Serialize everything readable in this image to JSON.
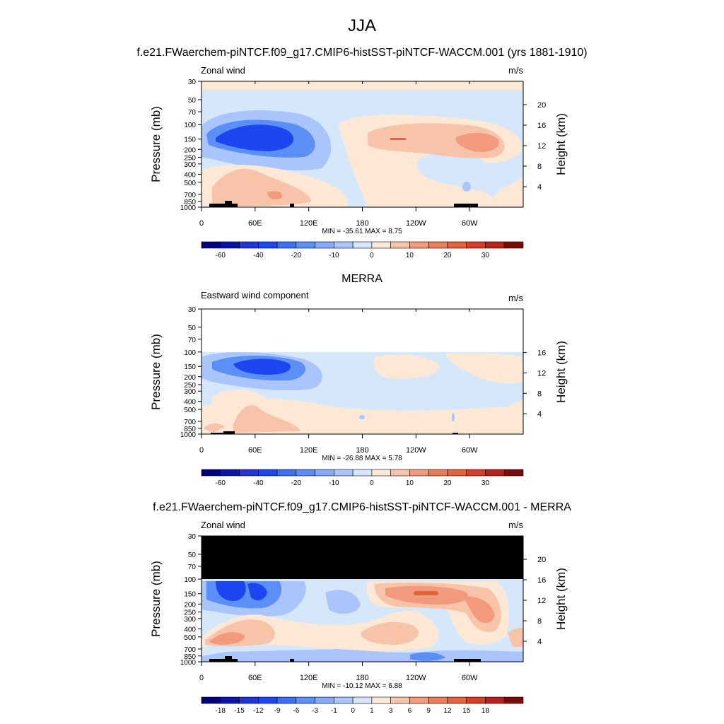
{
  "figure": {
    "title": "JJA"
  },
  "colors": {
    "ocean_dark": "#00007f",
    "blue_strong": "#1e46f0",
    "blue_mid": "#5b8ff6",
    "blue_light": "#a9c5fb",
    "blue_pale": "#d5e7fb",
    "orange_pale": "#fde7d5",
    "orange_light": "#f7c4aa",
    "orange_mid": "#f29b7c",
    "orange_strong": "#e4633f",
    "red_dark": "#7b0a0a",
    "missing": "#000000"
  },
  "chart_data": [
    {
      "type": "heatmap",
      "heading": "f.e21.FWaerchem-piNTCF.f09_g17.CMIP6-histSST-piNTCF-WACCM.001 (yrs 1881-1910)",
      "left_label": "Zonal wind",
      "right_label": "m/s",
      "ylabel": "Pressure (mb)",
      "y2label": "Height (km)",
      "x_ticks": [
        "0",
        "60E",
        "120E",
        "180",
        "120W",
        "60W"
      ],
      "y_ticks": [
        "30",
        "50",
        "70",
        "100",
        "150",
        "200",
        "250",
        "300",
        "400",
        "500",
        "700",
        "850",
        "1000"
      ],
      "y2_ticks": [
        "20",
        "16",
        "12",
        "8",
        "4"
      ],
      "stats": "MIN = -35.61  MAX =   8.75",
      "colorbar_labels": [
        "-60",
        "-40",
        "-20",
        "-10",
        "0",
        "10",
        "20",
        "30"
      ],
      "ylim": [
        1000,
        30
      ],
      "min": -35.61,
      "max": 8.75
    },
    {
      "type": "heatmap",
      "heading": "MERRA",
      "left_label": "Eastward wind component",
      "right_label": "m/s",
      "ylabel": "Pressure (mb)",
      "y2label": "Height (km)",
      "x_ticks": [
        "0",
        "60E",
        "120E",
        "180",
        "120W",
        "60W"
      ],
      "y_ticks": [
        "30",
        "50",
        "70",
        "100",
        "150",
        "200",
        "250",
        "300",
        "400",
        "500",
        "700",
        "850",
        "1000"
      ],
      "y2_ticks": [
        "16",
        "12",
        "8",
        "4"
      ],
      "stats": "MIN = -26.88  MAX =   5.78",
      "colorbar_labels": [
        "-60",
        "-40",
        "-20",
        "-10",
        "0",
        "10",
        "20",
        "30"
      ],
      "ylim": [
        1000,
        30
      ],
      "min": -26.88,
      "max": 5.78
    },
    {
      "type": "heatmap",
      "heading": "f.e21.FWaerchem-piNTCF.f09_g17.CMIP6-histSST-piNTCF-WACCM.001 - MERRA",
      "left_label": "Zonal wind",
      "right_label": "m/s",
      "ylabel": "Pressure (mb)",
      "y2label": "Height (km)",
      "x_ticks": [
        "0",
        "60E",
        "120E",
        "180",
        "120W",
        "60W"
      ],
      "y_ticks": [
        "30",
        "50",
        "70",
        "100",
        "150",
        "200",
        "250",
        "300",
        "400",
        "500",
        "700",
        "850",
        "1000"
      ],
      "y2_ticks": [
        "20",
        "16",
        "12",
        "8",
        "4"
      ],
      "stats": "MIN = -10.12  MAX =   6.88",
      "colorbar_labels": [
        "-18",
        "-15",
        "-12",
        "-9",
        "-6",
        "-3",
        "-1",
        "0",
        "1",
        "3",
        "6",
        "9",
        "12",
        "15",
        "18"
      ],
      "ylim": [
        1000,
        30
      ],
      "min": -10.12,
      "max": 6.88
    }
  ]
}
